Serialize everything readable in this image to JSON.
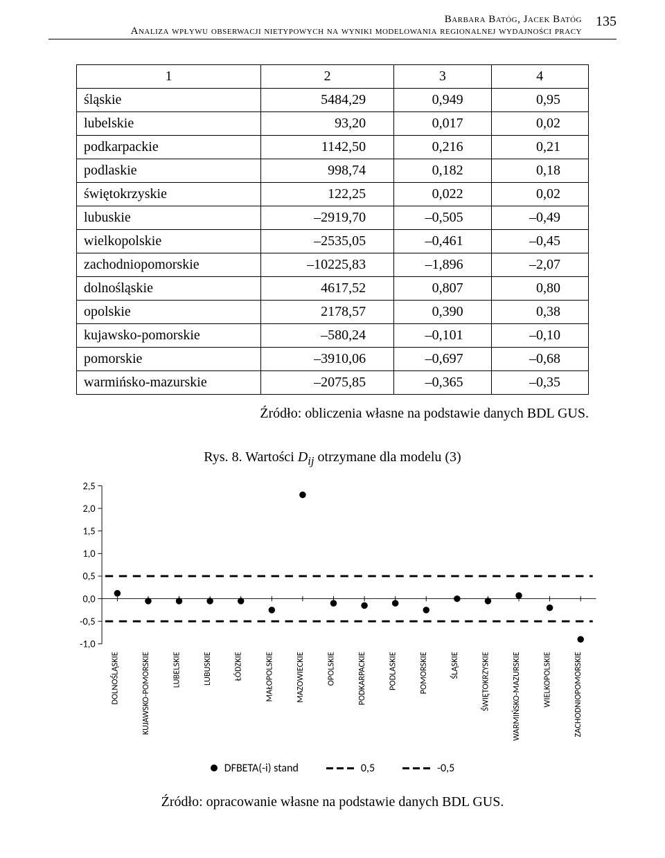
{
  "page_number": "135",
  "header": {
    "line1": "Barbara Batóg, Jacek Batóg",
    "line2": "Analiza wpływu obserwacji nietypowych na wyniki modelowania regionalnej wydajności pracy"
  },
  "table": {
    "col_headers": [
      "1",
      "2",
      "3",
      "4"
    ],
    "rows": [
      {
        "region": "śląskie",
        "c2": "5484,29",
        "c3": "0,949",
        "c4": "0,95"
      },
      {
        "region": "lubelskie",
        "c2": "93,20",
        "c3": "0,017",
        "c4": "0,02"
      },
      {
        "region": "podkarpackie",
        "c2": "1142,50",
        "c3": "0,216",
        "c4": "0,21"
      },
      {
        "region": "podlaskie",
        "c2": "998,74",
        "c3": "0,182",
        "c4": "0,18"
      },
      {
        "region": "świętokrzyskie",
        "c2": "122,25",
        "c3": "0,022",
        "c4": "0,02"
      },
      {
        "region": "lubuskie",
        "c2": "–2919,70",
        "c3": "–0,505",
        "c4": "–0,49"
      },
      {
        "region": "wielkopolskie",
        "c2": "–2535,05",
        "c3": "–0,461",
        "c4": "–0,45"
      },
      {
        "region": "zachodniopomorskie",
        "c2": "–10225,83",
        "c3": "–1,896",
        "c4": "–2,07"
      },
      {
        "region": "dolnośląskie",
        "c2": "4617,52",
        "c3": "0,807",
        "c4": "0,80"
      },
      {
        "region": "opolskie",
        "c2": "2178,57",
        "c3": "0,390",
        "c4": "0,38"
      },
      {
        "region": "kujawsko-pomorskie",
        "c2": "–580,24",
        "c3": "–0,101",
        "c4": "–0,10"
      },
      {
        "region": "pomorskie",
        "c2": "–3910,06",
        "c3": "–0,697",
        "c4": "–0,68"
      },
      {
        "region": "warmińsko-mazurskie",
        "c2": "–2075,85",
        "c3": "–0,365",
        "c4": "–0,35"
      }
    ],
    "source": "Źródło: obliczenia własne na podstawie danych BDL GUS."
  },
  "figure": {
    "caption_prefix": "Rys. 8. Wartości ",
    "caption_var": "D",
    "caption_sub": "ij",
    "caption_suffix": " otrzymane dla modelu (3)",
    "type": "scatter",
    "ylim": [
      -1.0,
      2.5
    ],
    "ytick_labels": [
      "2,5",
      "2,0",
      "1,5",
      "1,0",
      "0,5",
      "0,0",
      "-0,5",
      "-1,0"
    ],
    "ytick_values": [
      2.5,
      2.0,
      1.5,
      1.0,
      0.5,
      0.0,
      -0.5,
      -1.0
    ],
    "ref_lines": [
      0.5,
      -0.5
    ],
    "ref_line_style": "dashed",
    "marker_color": "#000000",
    "axis_color": "#000000",
    "tick_font_size": 15,
    "x_labels_font_size": 13,
    "categories": [
      "DOLNOŚLĄSKIE",
      "KUJAWSKO-POMORSKIE",
      "LUBELSKIE",
      "LUBUSKIE",
      "ŁÓDZKIE",
      "MAŁOPOLSKIE",
      "MAZOWIECKIE",
      "OPOLSKIE",
      "PODKARPACKIE",
      "PODLASKIE",
      "POMORSKIE",
      "ŚLĄSKIE",
      "ŚWIĘTOKRZYSKIE",
      "WARMIŃSKO-MAZURSKIE",
      "WIELKOPOLSKIE",
      "ZACHODNIOPOMORSKIE"
    ],
    "values": [
      0.12,
      -0.05,
      -0.05,
      -0.05,
      -0.05,
      -0.25,
      2.3,
      -0.1,
      -0.15,
      -0.1,
      -0.25,
      0.0,
      -0.05,
      0.07,
      -0.2,
      -0.9
    ],
    "legend": {
      "series": "DFBETA(-i) stand",
      "ref_pos": "0,5",
      "ref_neg": "-0,5"
    },
    "source": "Źródło: opracowanie własne na podstawie danych BDL GUS."
  }
}
